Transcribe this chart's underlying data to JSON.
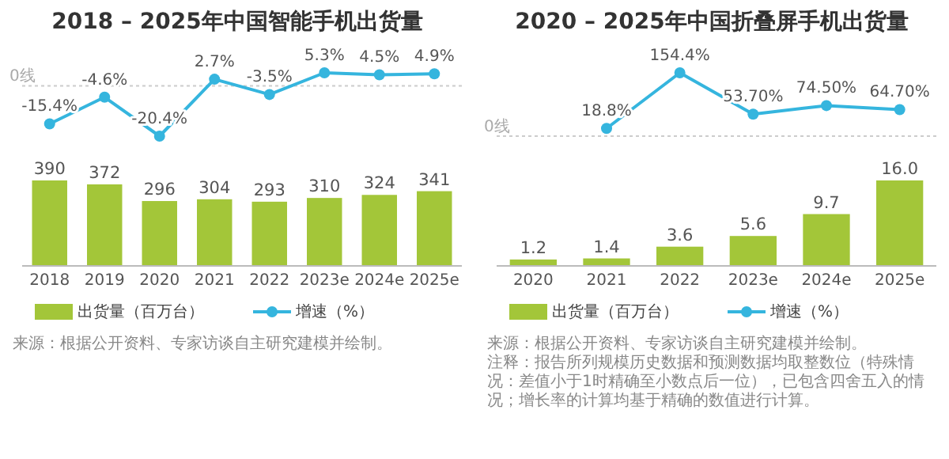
{
  "chart_data": [
    {
      "type": "line",
      "title": "2018 – 2025年中国智能手机出货量",
      "categories": [
        null,
        null,
        null,
        null,
        null,
        null,
        null,
        null
      ],
      "series": [
        {
          "name": "增速（%）",
          "color": "#35b5de",
          "values": [
            -15.4,
            -4.6,
            -20.4,
            2.7,
            -3.5,
            5.3,
            4.5,
            4.9
          ],
          "value_labels": [
            "-15.4%",
            "-4.6%",
            "-20.4%",
            "2.7%",
            "-3.5%",
            "5.3%",
            "4.5%",
            "4.9%"
          ]
        }
      ],
      "ref_lines": [
        {
          "axis": "y",
          "value": 0,
          "label": "0线",
          "color": "#cccccc",
          "line_style": "dotted"
        }
      ],
      "marker": "circle",
      "legend": "bottom"
    },
    {
      "type": "bar",
      "categories": [
        "2018",
        "2019",
        "2020",
        "2021",
        "2022",
        "2023e",
        "2024e",
        "2025e"
      ],
      "series": [
        {
          "name": "出货量（百万台）",
          "color": "#a3c639",
          "values": [
            390,
            372,
            296,
            304,
            293,
            310,
            324,
            341
          ],
          "value_labels": [
            "390",
            "372",
            "296",
            "304",
            "293",
            "310",
            "324",
            "341"
          ]
        }
      ],
      "legend": "bottom",
      "annotations": [
        "来源：根据公开资料、专家访谈自主研究建模并绘制。"
      ]
    },
    {
      "type": "line",
      "title": "2020 – 2025年中国折叠屏手机出货量",
      "categories": [
        null,
        null,
        null,
        null,
        null,
        null
      ],
      "series": [
        {
          "name": "增速（%）",
          "color": "#35b5de",
          "values": [
            null,
            18.8,
            154.4,
            53.7,
            74.5,
            64.7
          ],
          "value_labels": [
            null,
            "18.8%",
            "154.4%",
            "53.70%",
            "74.50%",
            "64.70%"
          ]
        }
      ],
      "ref_lines": [
        {
          "axis": "y",
          "value": 0,
          "label": "0线",
          "color": "#cccccc",
          "line_style": "dotted"
        }
      ],
      "marker": "circle",
      "legend": "bottom"
    },
    {
      "type": "bar",
      "categories": [
        "2020",
        "2021",
        "2022",
        "2023e",
        "2024e",
        "2025e"
      ],
      "series": [
        {
          "name": "出货量（百万台）",
          "color": "#a3c639",
          "values": [
            1.2,
            1.4,
            3.6,
            5.6,
            9.7,
            16.0
          ],
          "value_labels": [
            "1.2",
            "1.4",
            "3.6",
            "5.6",
            "9.7",
            "16.0"
          ]
        }
      ],
      "legend": "bottom",
      "annotations": [
        "来源：根据公开资料、专家访谈自主研究建模并绘制。",
        "注释：报告所列规模历史数据和预测数据均取整数位（特殊情况：差值小于1时精确至小数点后一位），已包含四舍五入的情况；增长率的计算均基于精确的数值进行计算。"
      ]
    }
  ]
}
